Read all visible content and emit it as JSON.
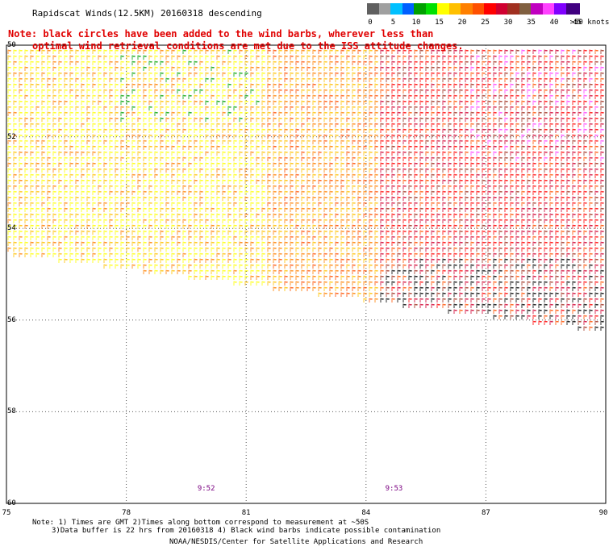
{
  "header": {
    "title": "Rapidscat Winds(12.5KM) 20160318 descending",
    "note_line1": "Note: black circles have been added to the wind barbs, wherever less than",
    "note_line2": "optimal wind retrieval conditions are met due to the ISS attitude changes."
  },
  "legend": {
    "unit_label": ">50 knots",
    "ticks": [
      "0",
      "5",
      "10",
      "15",
      "20",
      "25",
      "30",
      "35",
      "40",
      "45"
    ],
    "colors": [
      "#606060",
      "#a0a0a0",
      "#00c0ff",
      "#0060ff",
      "#00a000",
      "#00e000",
      "#ffff00",
      "#ffc000",
      "#ff8000",
      "#ff5000",
      "#ff0000",
      "#d00030",
      "#a03020",
      "#806040",
      "#c000c0",
      "#ff40ff",
      "#8000ff",
      "#400080"
    ]
  },
  "map": {
    "lat_labels": [
      "50",
      "52",
      "54",
      "56",
      "58",
      "60"
    ],
    "lon_labels": [
      "75",
      "78",
      "81",
      "84",
      "87",
      "90"
    ],
    "lat_range": [
      -60,
      -50
    ],
    "lon_range": [
      75,
      90
    ],
    "grid": "dotted",
    "times": [
      {
        "label": "9:52",
        "lon": 80.0
      },
      {
        "label": "9:53",
        "lon": 84.7
      }
    ]
  },
  "footer": {
    "line1": "Note: 1) Times are GMT 2)Times along bottom correspond to measurement at ~50S",
    "line2": "3)Data buffer is 22 hrs from 20160318 4) Black wind barbs indicate possible contamination",
    "line3": "NOAA/NESDIS/Center for Satellite Applications and Research"
  }
}
